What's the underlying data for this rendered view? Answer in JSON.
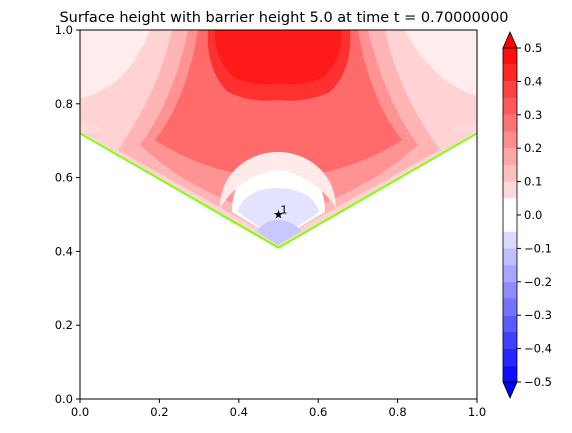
{
  "chart_data": {
    "type": "heatmap",
    "title": "Surface height with barrier height 5.0 at time t =     0.70000000",
    "xlim": [
      0.0,
      1.0
    ],
    "ylim": [
      0.0,
      1.0
    ],
    "x_ticks": [
      "0.0",
      "0.2",
      "0.4",
      "0.6",
      "0.8",
      "1.0"
    ],
    "y_ticks": [
      "0.0",
      "0.2",
      "0.4",
      "0.6",
      "0.8",
      "1.0"
    ],
    "grid": false,
    "barrier_line": {
      "color": "#7fff00",
      "points": [
        [
          0.0,
          0.72
        ],
        [
          0.5,
          0.41
        ],
        [
          1.0,
          0.72
        ]
      ]
    },
    "gauge": {
      "marker": "star",
      "label": "1",
      "x": 0.5,
      "y": 0.5
    },
    "colorbar": {
      "min": -0.5,
      "max": 0.5,
      "levels": 20,
      "extend": "both",
      "tick_labels": [
        "−0.5",
        "−0.4",
        "−0.3",
        "−0.2",
        "−0.1",
        "0.0",
        "0.1",
        "0.2",
        "0.3",
        "0.4",
        "0.5"
      ],
      "low_color": "#0000ff",
      "mid_color": "#ffffff",
      "high_color": "#ff0000"
    }
  }
}
